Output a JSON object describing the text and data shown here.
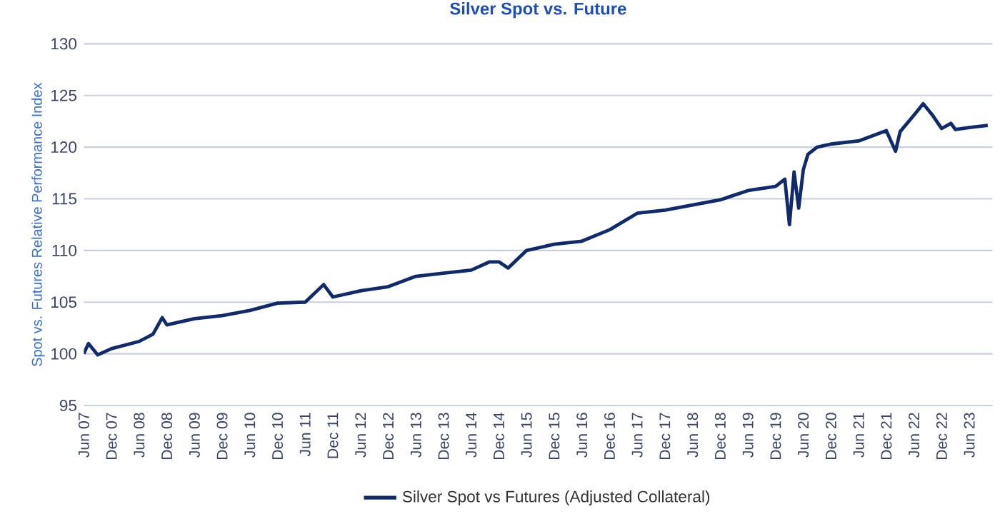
{
  "chart_data": {
    "type": "line",
    "title": "Silver Spot vs. Future",
    "ylabel": "Spot vs. Futures Relative Performance Index",
    "x": [
      "2007-06",
      "2007-07",
      "2007-09",
      "2007-12",
      "2008-06",
      "2008-09",
      "2008-11",
      "2008-12",
      "2009-06",
      "2009-12",
      "2010-06",
      "2010-12",
      "2011-06",
      "2011-10",
      "2011-12",
      "2012-06",
      "2012-12",
      "2013-06",
      "2013-12",
      "2014-06",
      "2014-10",
      "2014-12",
      "2015-02",
      "2015-06",
      "2015-12",
      "2016-06",
      "2016-12",
      "2017-06",
      "2017-12",
      "2018-06",
      "2018-12",
      "2019-06",
      "2019-12",
      "2020-02",
      "2020-03",
      "2020-04",
      "2020-05",
      "2020-06",
      "2020-07",
      "2020-09",
      "2020-12",
      "2021-06",
      "2021-12",
      "2022-02",
      "2022-03",
      "2022-06",
      "2022-08",
      "2022-10",
      "2022-12",
      "2023-02",
      "2023-03",
      "2023-06",
      "2023-10"
    ],
    "series": [
      {
        "name": "Silver Spot vs Futures (Adjusted Collateral)",
        "color": "#102a6b",
        "values": [
          100.0,
          101.0,
          99.9,
          100.5,
          101.2,
          101.9,
          103.5,
          102.8,
          103.4,
          103.7,
          104.2,
          104.9,
          105.0,
          106.7,
          105.5,
          106.1,
          106.5,
          107.5,
          107.8,
          108.1,
          108.9,
          108.9,
          108.3,
          110.0,
          110.6,
          110.9,
          112.0,
          113.6,
          113.9,
          114.4,
          114.9,
          115.8,
          116.2,
          116.9,
          112.5,
          117.6,
          114.1,
          117.8,
          119.3,
          120.0,
          120.3,
          120.6,
          121.6,
          119.6,
          121.5,
          123.1,
          124.2,
          123.1,
          121.8,
          122.3,
          121.7,
          121.9,
          122.1
        ]
      }
    ],
    "xlim": [
      "2007-06",
      "2023-11"
    ],
    "xticks": [
      {
        "value": "2007-06",
        "label": "Jun 07"
      },
      {
        "value": "2007-12",
        "label": "Dec 07"
      },
      {
        "value": "2008-06",
        "label": "Jun 08"
      },
      {
        "value": "2008-12",
        "label": "Dec 08"
      },
      {
        "value": "2009-06",
        "label": "Jun 09"
      },
      {
        "value": "2009-12",
        "label": "Dec 09"
      },
      {
        "value": "2010-06",
        "label": "Jun 10"
      },
      {
        "value": "2010-12",
        "label": "Dec 10"
      },
      {
        "value": "2011-06",
        "label": "Jun 11"
      },
      {
        "value": "2011-12",
        "label": "Dec 11"
      },
      {
        "value": "2012-06",
        "label": "Jun 12"
      },
      {
        "value": "2012-12",
        "label": "Dec 12"
      },
      {
        "value": "2013-06",
        "label": "Jun 13"
      },
      {
        "value": "2013-12",
        "label": "Dec 13"
      },
      {
        "value": "2014-06",
        "label": "Jun 14"
      },
      {
        "value": "2014-12",
        "label": "Dec 14"
      },
      {
        "value": "2015-06",
        "label": "Jun 15"
      },
      {
        "value": "2015-12",
        "label": "Dec 15"
      },
      {
        "value": "2016-06",
        "label": "Jun 16"
      },
      {
        "value": "2016-12",
        "label": "Dec 16"
      },
      {
        "value": "2017-06",
        "label": "Jun 17"
      },
      {
        "value": "2017-12",
        "label": "Dec 17"
      },
      {
        "value": "2018-06",
        "label": "Jun 18"
      },
      {
        "value": "2018-12",
        "label": "Dec 18"
      },
      {
        "value": "2019-06",
        "label": "Jun 19"
      },
      {
        "value": "2019-12",
        "label": "Dec 19"
      },
      {
        "value": "2020-06",
        "label": "Jun 20"
      },
      {
        "value": "2020-12",
        "label": "Dec 20"
      },
      {
        "value": "2021-06",
        "label": "Jun 21"
      },
      {
        "value": "2021-12",
        "label": "Dec 21"
      },
      {
        "value": "2022-06",
        "label": "Jun 22"
      },
      {
        "value": "2022-12",
        "label": "Dec 22"
      },
      {
        "value": "2023-06",
        "label": "Jun 23"
      }
    ],
    "ylim": [
      95,
      130
    ],
    "yticks": [
      95,
      100,
      105,
      110,
      115,
      120,
      125,
      130
    ],
    "grid": "y",
    "legend": "bottom",
    "marker": "none",
    "line_style": "solid"
  }
}
